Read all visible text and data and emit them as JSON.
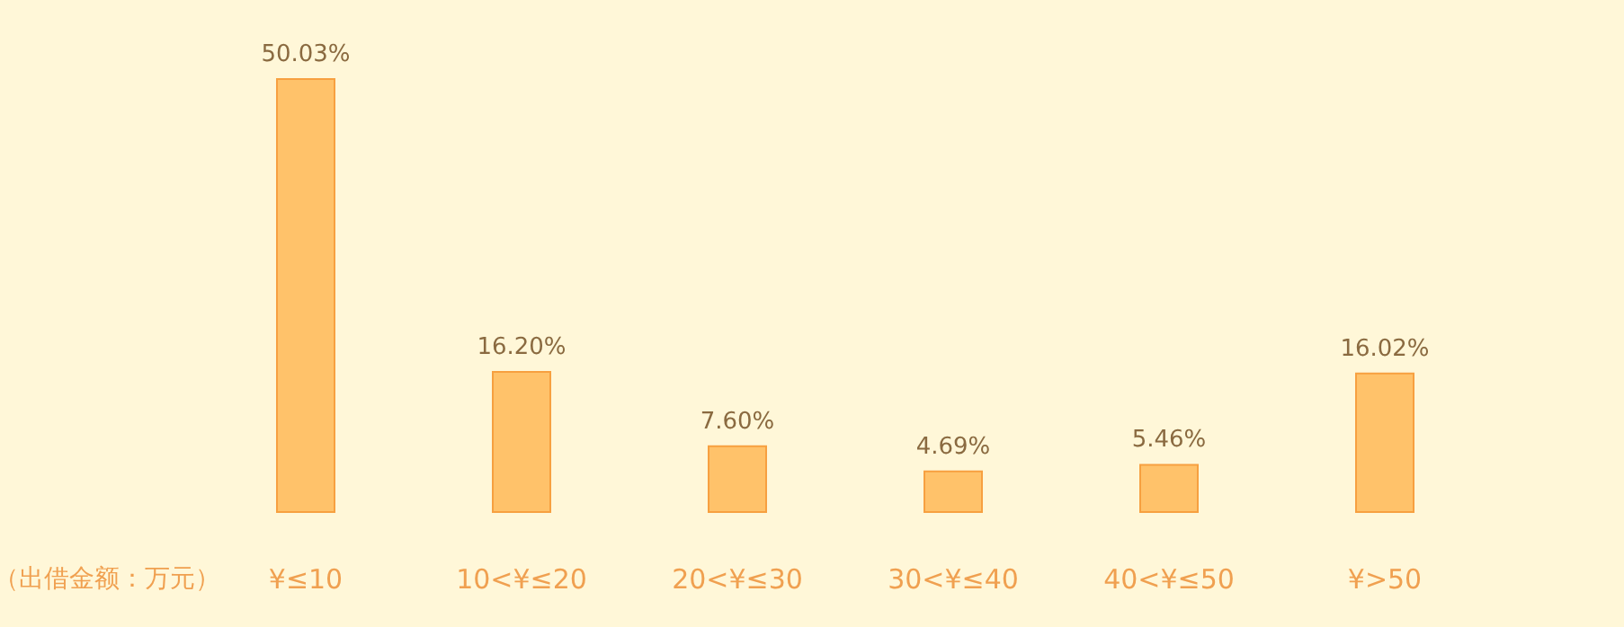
{
  "chart_data": {
    "type": "bar",
    "xlabel": "（出借金额：万元）",
    "categories": [
      "¥≤10",
      "10<¥≤20",
      "20<¥≤30",
      "30<¥≤40",
      "40<¥≤50",
      "¥>50"
    ],
    "values": [
      50.03,
      16.2,
      7.6,
      4.69,
      5.46,
      16.02
    ],
    "value_labels": [
      "50.03%",
      "16.20%",
      "7.60%",
      "4.69%",
      "5.46%",
      "16.02%"
    ],
    "color": "#ffc26a",
    "grid": false
  }
}
